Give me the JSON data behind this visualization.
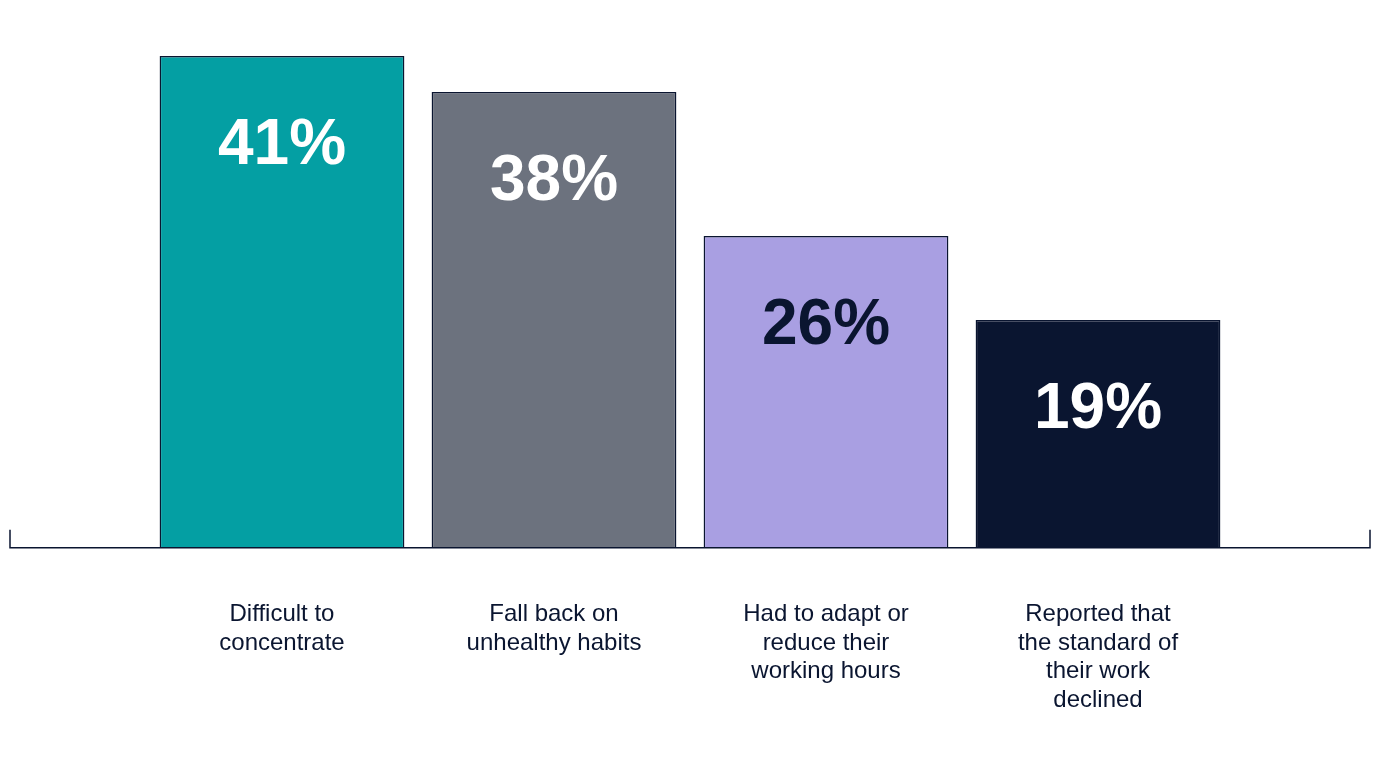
{
  "chart_data": {
    "type": "bar",
    "categories": [
      "Difficult to concentrate",
      "Fall back on unhealthy habits",
      "Had to adapt or reduce their working hours",
      "Reported that the standard of their work declined"
    ],
    "values": [
      41,
      38,
      26,
      19
    ],
    "colors": [
      "#049fa3",
      "#6c727e",
      "#a99fe2",
      "#0a1530"
    ],
    "value_labels": [
      "41%",
      "38%",
      "26%",
      "19%"
    ],
    "grid": false,
    "legend": false
  }
}
